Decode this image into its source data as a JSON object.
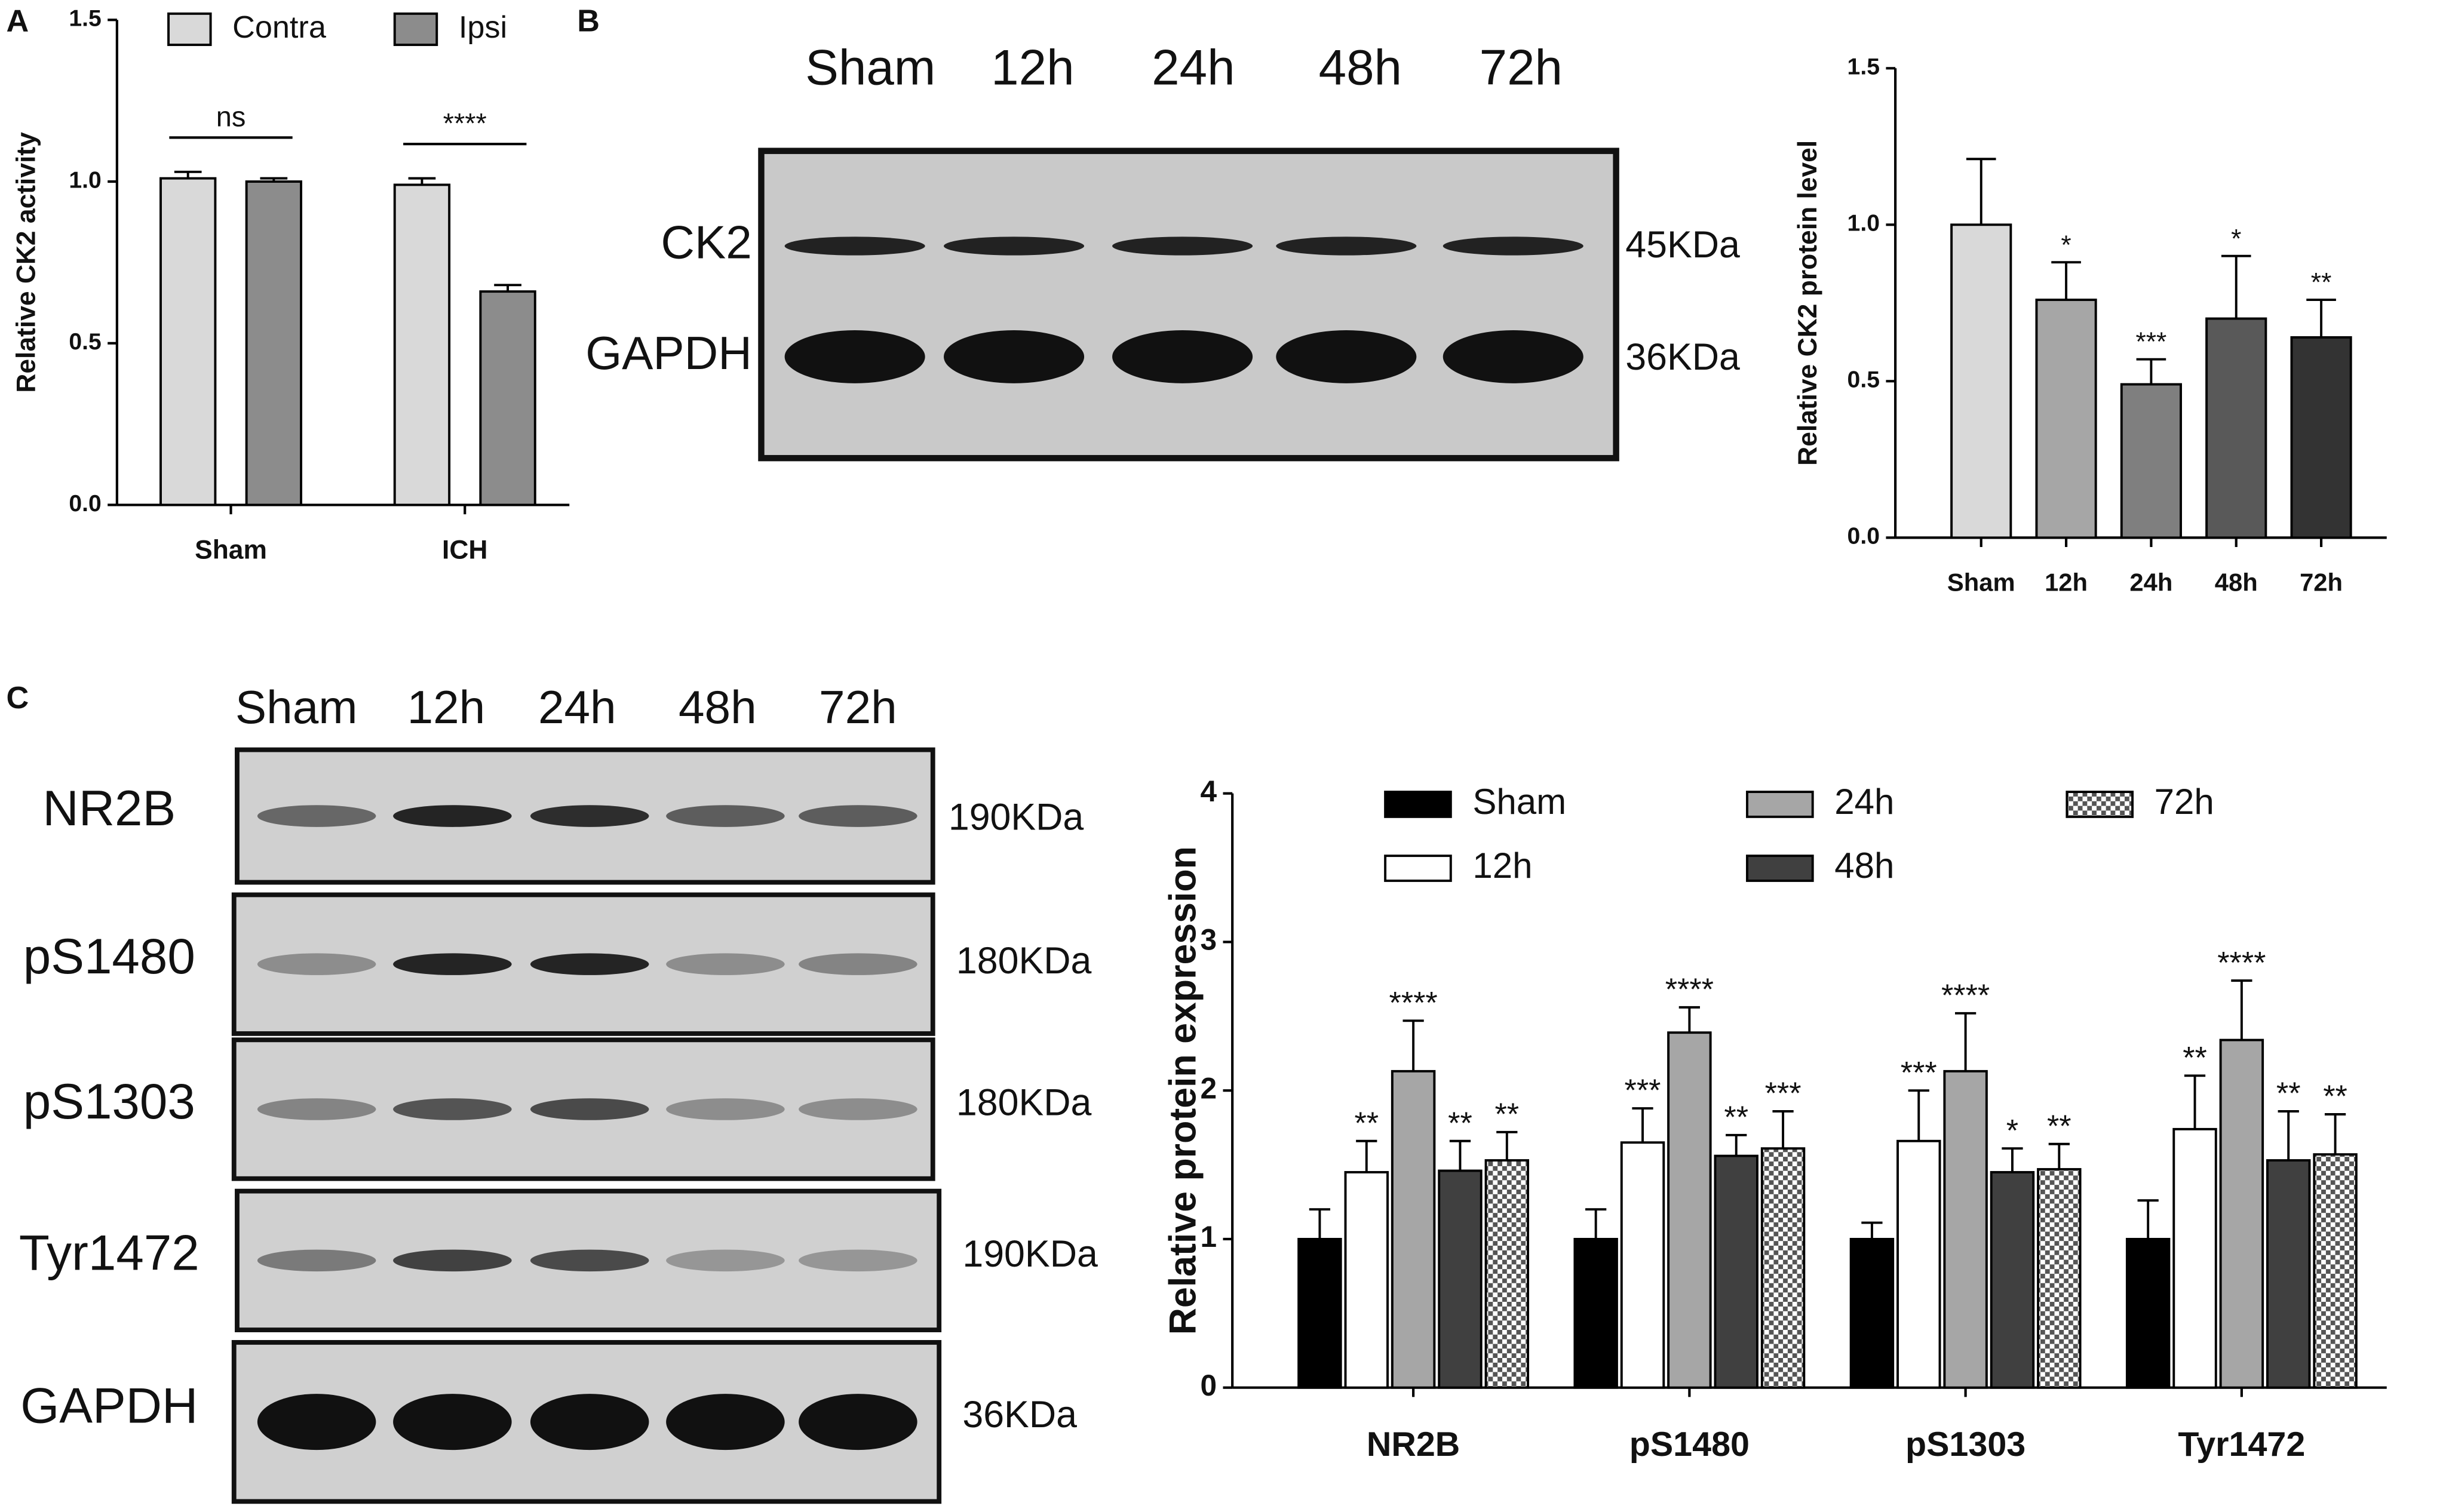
{
  "panel_labels": [
    "A",
    "B",
    "C"
  ],
  "chart_data": [
    {
      "type": "bar",
      "ylabel": "Relative CK2 activity",
      "categories": [
        "Sham",
        "ICH"
      ],
      "series": [
        {
          "name": "Contra",
          "color": "#d9d9d9",
          "values": [
            1.01,
            0.99
          ],
          "errors": [
            0.02,
            0.02
          ]
        },
        {
          "name": "Ipsi",
          "color": "#8c8c8c",
          "values": [
            1.0,
            0.66
          ],
          "errors": [
            0.01,
            0.02
          ]
        }
      ],
      "comparisons": [
        "ns",
        "****"
      ],
      "legend": "top",
      "ylim": [
        0,
        1.5
      ],
      "yticks": [
        {
          "value": 0,
          "label": "0.0"
        },
        {
          "value": 0.5,
          "label": "0.5"
        },
        {
          "value": 1,
          "label": "1.0"
        },
        {
          "value": 1.5,
          "label": "1.5"
        }
      ]
    },
    {
      "type": "bar",
      "ylabel": "Relative CK2 protein level",
      "categories": [
        "Sham",
        "12h",
        "24h",
        "48h",
        "72h"
      ],
      "values": [
        1.0,
        0.76,
        0.49,
        0.7,
        0.64
      ],
      "errors": [
        0.21,
        0.12,
        0.08,
        0.2,
        0.12
      ],
      "colors": [
        "#d9d9d9",
        "#a6a6a6",
        "#7f7f7f",
        "#595959",
        "#333333"
      ],
      "significance": [
        null,
        "*",
        "***",
        "*",
        "**"
      ],
      "ylim": [
        0,
        1.5
      ],
      "yticks": [
        {
          "value": 0,
          "label": "0.0"
        },
        {
          "value": 0.5,
          "label": "0.5"
        },
        {
          "value": 1,
          "label": "1.0"
        },
        {
          "value": 1.5,
          "label": "1.5"
        }
      ]
    },
    {
      "type": "bar",
      "ylabel": "Relative protein expression",
      "categories": [
        "NR2B",
        "pS1480",
        "pS1303",
        "Tyr1472"
      ],
      "series": [
        {
          "name": "Sham",
          "color": "#000000",
          "values": [
            1,
            1,
            1,
            1
          ],
          "errors": [
            0.2,
            0.2,
            0.11,
            0.26
          ],
          "significance": [
            null,
            null,
            null,
            null
          ]
        },
        {
          "name": "12h",
          "color": "#ffffff",
          "values": [
            1.45,
            1.65,
            1.66,
            1.74
          ],
          "errors": [
            0.21,
            0.23,
            0.34,
            0.36
          ],
          "significance": [
            "**",
            "***",
            "***",
            "**"
          ]
        },
        {
          "name": "24h",
          "color": "#a6a6a6",
          "values": [
            2.13,
            2.39,
            2.13,
            2.34
          ],
          "errors": [
            0.34,
            0.17,
            0.39,
            0.4
          ],
          "significance": [
            "****",
            "****",
            "****",
            "****"
          ]
        },
        {
          "name": "48h",
          "color": "#404040",
          "values": [
            1.46,
            1.56,
            1.45,
            1.53
          ],
          "errors": [
            0.2,
            0.14,
            0.16,
            0.33
          ],
          "significance": [
            "**",
            "**",
            "*",
            "**"
          ]
        },
        {
          "name": "72h",
          "color": "#555555",
          "pattern": "checker",
          "values": [
            1.53,
            1.61,
            1.47,
            1.57
          ],
          "errors": [
            0.19,
            0.25,
            0.17,
            0.27
          ],
          "significance": [
            "**",
            "***",
            "**",
            "**"
          ]
        }
      ],
      "legend": "top",
      "ylim": [
        0,
        4
      ],
      "yticks": [
        0,
        1,
        2,
        3,
        4
      ]
    }
  ],
  "blots": {
    "B": {
      "lanes": [
        "Sham",
        "12h",
        "24h",
        "48h",
        "72h"
      ],
      "rows": [
        {
          "label": "CK2",
          "size": "45KDa"
        },
        {
          "label": "GAPDH",
          "size": "36KDa"
        }
      ]
    },
    "C": {
      "lanes": [
        "Sham",
        "12h",
        "24h",
        "48h",
        "72h"
      ],
      "rows": [
        {
          "label": "NR2B",
          "size": "190KDa"
        },
        {
          "label": "pS1480",
          "size": "180KDa"
        },
        {
          "label": "pS1303",
          "size": "180KDa"
        },
        {
          "label": "Tyr1472",
          "size": "190KDa"
        },
        {
          "label": "GAPDH",
          "size": "36KDa"
        }
      ]
    }
  }
}
